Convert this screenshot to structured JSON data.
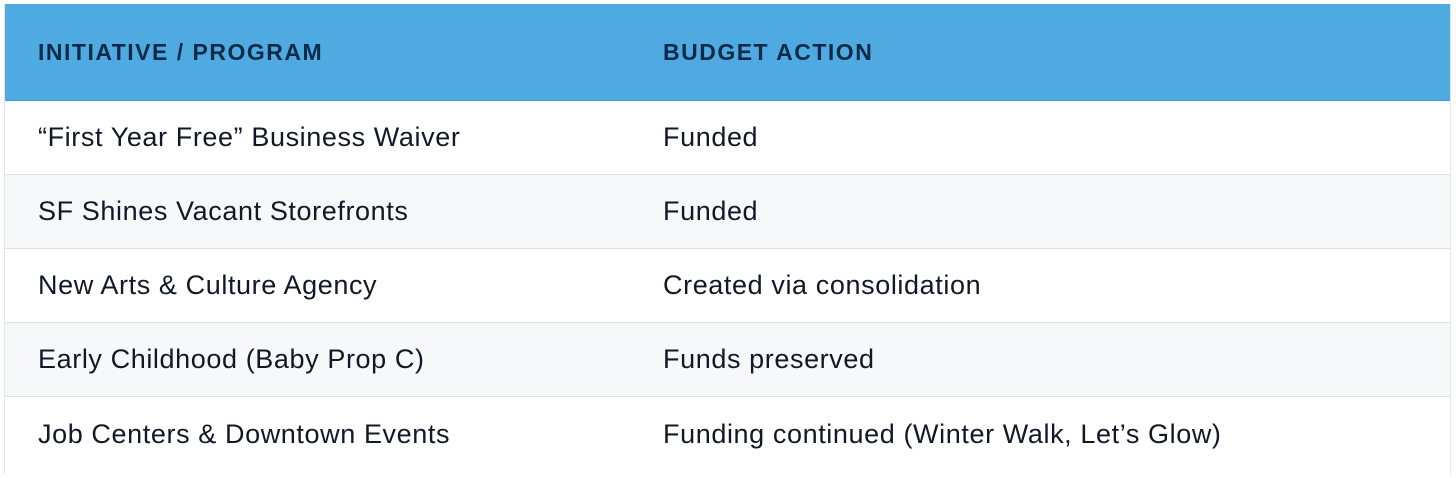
{
  "table": {
    "headers": [
      "INITIATIVE / PROGRAM",
      "BUDGET ACTION"
    ],
    "rows": [
      [
        "“First Year Free” Business Waiver",
        "Funded"
      ],
      [
        "SF Shines Vacant Storefronts",
        "Funded"
      ],
      [
        "New Arts & Culture Agency",
        "Created via consolidation"
      ],
      [
        "Early Childhood (Baby Prop C)",
        "Funds preserved"
      ],
      [
        "Job Centers & Downtown Events",
        "Funding continued (Winter Walk, Let’s Glow)"
      ]
    ]
  },
  "colors": {
    "header_bg": "#4faae2",
    "header_text": "#0e2a47",
    "stripe_bg": "#f7f8fa",
    "body_text": "#111827",
    "row_border": "#dde2e7"
  }
}
